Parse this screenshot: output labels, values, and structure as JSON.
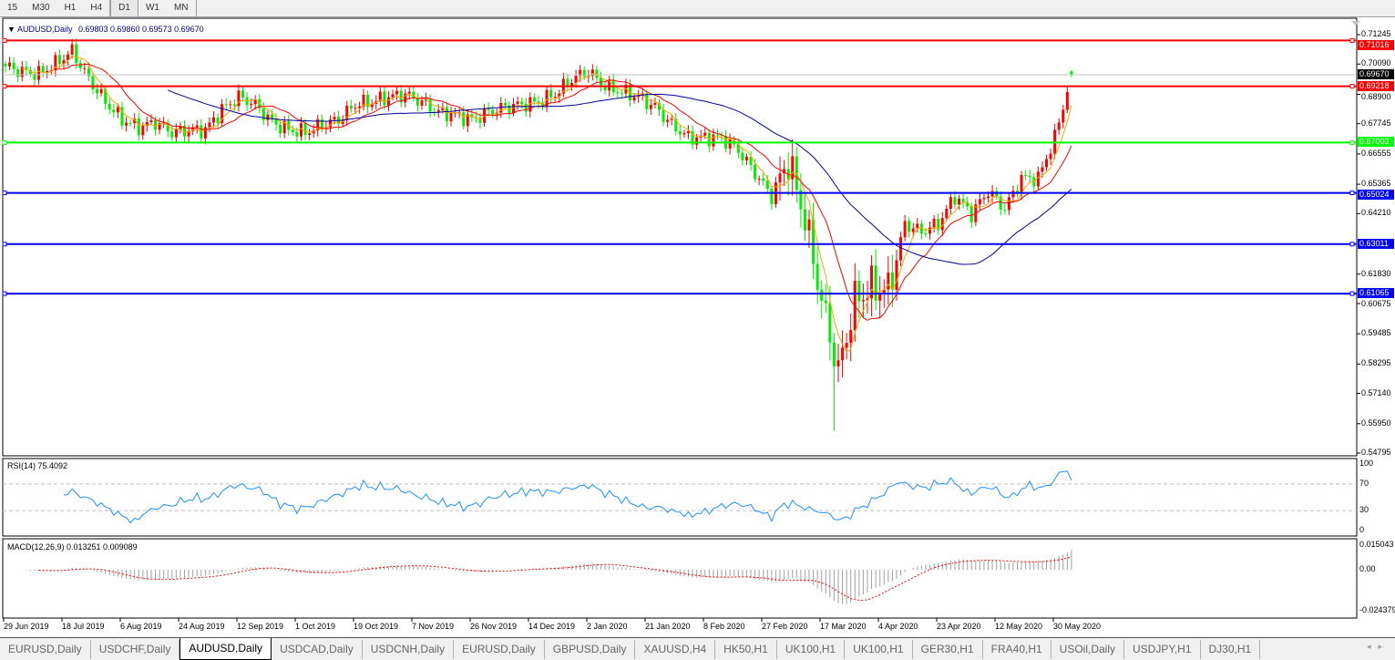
{
  "toolbar": {
    "timeframes": [
      "15",
      "M30",
      "H1",
      "H4",
      "D1",
      "W1",
      "MN"
    ],
    "active": "D1"
  },
  "chart": {
    "symbol_label": "AUDUSD,Daily",
    "ohlc_text": "0.69803 0.69860 0.69573 0.69670",
    "price_ticks": [
      "0.71245",
      "0.70090",
      "0.68900",
      "0.67745",
      "0.66555",
      "0.65365",
      "0.64210",
      "0.61830",
      "0.60675",
      "0.59485",
      "0.58295",
      "0.57140",
      "0.55950",
      "0.54795"
    ],
    "current_price": "0.69670",
    "levels": [
      {
        "price": "0.71016",
        "color": "#ff0000"
      },
      {
        "price": "0.69218",
        "color": "#ff0000"
      },
      {
        "price": "0.67003",
        "color": "#00ff00"
      },
      {
        "price": "0.65024",
        "color": "#0000ff"
      },
      {
        "price": "0.63011",
        "color": "#0000ff"
      },
      {
        "price": "0.61065",
        "color": "#0000ff"
      }
    ],
    "date_labels": [
      "29 Jun 2019",
      "18 Jul 2019",
      "6 Aug 2019",
      "24 Aug 2019",
      "12 Sep 2019",
      "1 Oct 2019",
      "19 Oct 2019",
      "7 Nov 2019",
      "26 Nov 2019",
      "14 Dec 2019",
      "2 Jan 2020",
      "21 Jan 2020",
      "8 Feb 2020",
      "27 Feb 2020",
      "17 Mar 2020",
      "4 Apr 2020",
      "23 Apr 2020",
      "12 May 2020",
      "30 May 2020"
    ],
    "colors": {
      "bull": "#ff0000",
      "bear": "#00ee00",
      "ma_fast": "#ffa500",
      "ma_mid": "#ff0000",
      "ma_slow": "#00009c",
      "rsi": "#1e90ff",
      "macd_hist": "#a0a0a0",
      "macd_signal": "#ff0000"
    }
  },
  "rsi": {
    "label": "RSI(14) 75.4092",
    "ticks": [
      "100",
      "70",
      "30",
      "0"
    ]
  },
  "macd": {
    "label": "MACD(12,26,9) 0.013251 0.009089",
    "ticks": [
      "0.015043",
      "0.00",
      "-0.024379"
    ]
  },
  "chart_data": {
    "type": "candlestick",
    "symbol": "AUDUSD",
    "timeframe": "Daily",
    "ylim": [
      0.54795,
      0.71245
    ],
    "approx_closes_every_4_bars": [
      0.7,
      0.698,
      0.697,
      0.701,
      0.706,
      0.695,
      0.686,
      0.679,
      0.676,
      0.678,
      0.674,
      0.675,
      0.675,
      0.683,
      0.688,
      0.685,
      0.678,
      0.675,
      0.674,
      0.677,
      0.679,
      0.685,
      0.686,
      0.688,
      0.689,
      0.686,
      0.682,
      0.681,
      0.679,
      0.682,
      0.684,
      0.685,
      0.686,
      0.689,
      0.695,
      0.698,
      0.692,
      0.69,
      0.688,
      0.684,
      0.677,
      0.672,
      0.672,
      0.672,
      0.667,
      0.658,
      0.649,
      0.663,
      0.64,
      0.608,
      0.58,
      0.608,
      0.613,
      0.612,
      0.638,
      0.635,
      0.638,
      0.649,
      0.642,
      0.651,
      0.644,
      0.656,
      0.656,
      0.672,
      0.6967
    ],
    "last_ohlc": {
      "open": 0.69803,
      "high": 0.6986,
      "low": 0.69573,
      "close": 0.6967
    }
  },
  "tabs": [
    "EURUSD,Daily",
    "USDCHF,Daily",
    "AUDUSD,Daily",
    "USDCAD,Daily",
    "USDCNH,Daily",
    "EURUSD,Daily",
    "GBPUSD,Daily",
    "XAUUSD,H4",
    "HK50,H1",
    "UK100,H1",
    "UK100,H1",
    "GER30,H1",
    "FRA40,H1",
    "USOil,Daily",
    "USDJPY,H1",
    "DJ30,H1"
  ],
  "active_tab": "AUDUSD,Daily"
}
